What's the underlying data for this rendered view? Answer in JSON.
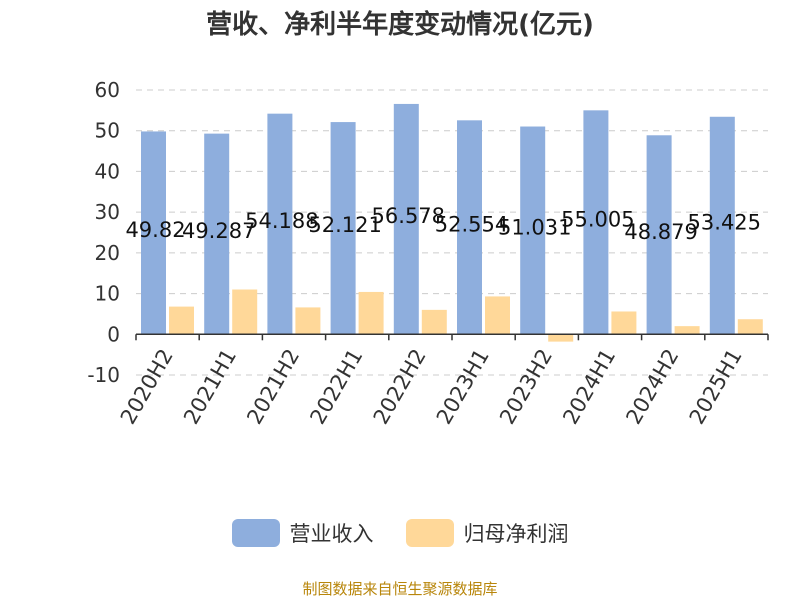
{
  "colors": {
    "revenue": "#8eaedd",
    "profit": "#ffd899"
  },
  "legend": {
    "revenue": "营业收入",
    "profit": "归母净利润"
  },
  "source": "制图数据来自恒生聚源数据库",
  "chart_data": {
    "type": "bar",
    "title": "营收、净利半年度变动情况(亿元)",
    "categories": [
      "2020H2",
      "2021H1",
      "2021H2",
      "2022H1",
      "2022H2",
      "2023H1",
      "2023H2",
      "2024H1",
      "2024H2",
      "2025H1"
    ],
    "series": [
      {
        "name": "营业收入",
        "values": [
          49.82,
          49.287,
          54.188,
          52.121,
          56.578,
          52.554,
          51.031,
          55.005,
          48.879,
          53.425
        ]
      },
      {
        "name": "归母净利润",
        "values": [
          6.8,
          11.0,
          6.6,
          10.4,
          6.0,
          9.3,
          -1.8,
          5.6,
          2.0,
          3.7
        ]
      }
    ],
    "data_labels": [
      "49.82",
      "49.287",
      "54.188",
      "52.121",
      "56.578",
      "52.554",
      "51.031",
      "55.005",
      "48.879",
      "53.425"
    ],
    "yticks": [
      -10,
      0,
      10,
      20,
      30,
      40,
      50,
      60
    ],
    "ylim": [
      -10,
      60
    ],
    "grid": true,
    "legend_position": "bottom"
  }
}
